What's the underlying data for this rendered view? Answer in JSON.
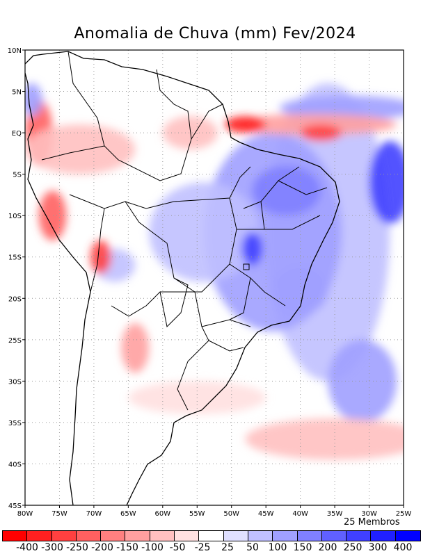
{
  "title": "Anomalia de Chuva (mm) Fev/2024",
  "members_label": "25 Membros",
  "map": {
    "lon_range": [
      -80,
      -25
    ],
    "lat_range": [
      -45,
      10
    ],
    "x_ticks": [
      {
        "lon": -80,
        "label": "80W"
      },
      {
        "lon": -75,
        "label": "75W"
      },
      {
        "lon": -70,
        "label": "70W"
      },
      {
        "lon": -65,
        "label": "65W"
      },
      {
        "lon": -60,
        "label": "60W"
      },
      {
        "lon": -55,
        "label": "55W"
      },
      {
        "lon": -50,
        "label": "50W"
      },
      {
        "lon": -45,
        "label": "45W"
      },
      {
        "lon": -40,
        "label": "40W"
      },
      {
        "lon": -35,
        "label": "35W"
      },
      {
        "lon": -30,
        "label": "30W"
      },
      {
        "lon": -25,
        "label": "25W"
      }
    ],
    "y_ticks": [
      {
        "lat": 10,
        "label": "10N"
      },
      {
        "lat": 5,
        "label": "5N"
      },
      {
        "lat": 0,
        "label": "EQ"
      },
      {
        "lat": -5,
        "label": "5S"
      },
      {
        "lat": -10,
        "label": "10S"
      },
      {
        "lat": -15,
        "label": "15S"
      },
      {
        "lat": -20,
        "label": "20S"
      },
      {
        "lat": -25,
        "label": "25S"
      },
      {
        "lat": -30,
        "label": "30S"
      },
      {
        "lat": -35,
        "label": "35S"
      },
      {
        "lat": -40,
        "label": "40S"
      },
      {
        "lat": -45,
        "label": "45S"
      }
    ],
    "anomaly_regions": [
      {
        "lon": -36,
        "lat": -12,
        "rlon": 9,
        "rlat": 18,
        "value": 75
      },
      {
        "lon": -44,
        "lat": -12,
        "rlon": 10,
        "rlat": 12,
        "value": 110
      },
      {
        "lon": -54,
        "lat": -12,
        "rlon": 8,
        "rlat": 6,
        "value": 80
      },
      {
        "lon": -42,
        "lat": -7,
        "rlon": 5,
        "rlat": 3,
        "value": 170
      },
      {
        "lon": -27,
        "lat": -6,
        "rlon": 3,
        "rlat": 5,
        "value": 260
      },
      {
        "lon": -33,
        "lat": 3,
        "rlon": 10,
        "rlat": 1.5,
        "value": 130
      },
      {
        "lon": -31,
        "lat": -30,
        "rlon": 5,
        "rlat": 5,
        "value": 120
      },
      {
        "lon": -40,
        "lat": -19,
        "rlon": 4,
        "rlat": 3,
        "value": 140
      },
      {
        "lon": -47,
        "lat": -14,
        "rlon": 1.5,
        "rlat": 2,
        "value": 260
      },
      {
        "lon": -67,
        "lat": -16,
        "rlon": 3,
        "rlat": 2,
        "value": 60
      },
      {
        "lon": -38,
        "lat": 1,
        "rlon": 12,
        "rlat": 1.3,
        "value": -120
      },
      {
        "lon": -37,
        "lat": 0,
        "rlon": 3,
        "rlat": 1,
        "value": -260
      },
      {
        "lon": -48,
        "lat": 1,
        "rlon": 3,
        "rlat": 1,
        "value": -320
      },
      {
        "lon": -56,
        "lat": 0,
        "rlon": 4,
        "rlat": 2,
        "value": -90
      },
      {
        "lon": -78,
        "lat": 0,
        "rlon": 2,
        "rlat": 4,
        "value": -220
      },
      {
        "lon": -76,
        "lat": -10,
        "rlon": 2,
        "rlat": 3,
        "value": -220
      },
      {
        "lon": -69,
        "lat": -15,
        "rlon": 1.5,
        "rlat": 2,
        "value": -300
      },
      {
        "lon": -64,
        "lat": -26,
        "rlon": 2,
        "rlat": 3,
        "value": -130
      },
      {
        "lon": -72,
        "lat": -2,
        "rlon": 8,
        "rlat": 3,
        "value": -60
      },
      {
        "lon": -35,
        "lat": -37,
        "rlon": 13,
        "rlat": 2.5,
        "value": -70
      },
      {
        "lon": -55,
        "lat": -32,
        "rlon": 10,
        "rlat": 2,
        "value": -50
      },
      {
        "lon": -79,
        "lat": 4,
        "rlon": 1.5,
        "rlat": 2,
        "value": 120
      }
    ]
  },
  "colorbar": {
    "colors": [
      "#ff0000",
      "#ff2020",
      "#ff4040",
      "#ff6060",
      "#ff8080",
      "#ffa0a0",
      "#ffc0c0",
      "#ffe0e0",
      "#ffffff",
      "#e0e0ff",
      "#c0c0ff",
      "#a0a0ff",
      "#8080ff",
      "#6060ff",
      "#4040ff",
      "#2020ff",
      "#0000ff"
    ],
    "labels": [
      "-400",
      "-300",
      "-250",
      "-200",
      "-150",
      "-100",
      "-50",
      "-25",
      "25",
      "50",
      "100",
      "150",
      "200",
      "250",
      "300",
      "400"
    ],
    "bounds": [
      -400,
      -300,
      -250,
      -200,
      -150,
      -100,
      -50,
      -25,
      25,
      50,
      100,
      150,
      200,
      250,
      300,
      400
    ]
  }
}
